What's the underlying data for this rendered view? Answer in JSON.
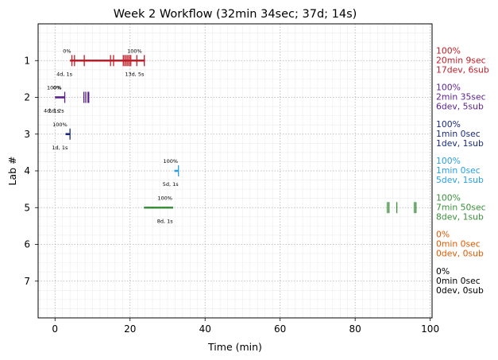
{
  "chart_data": {
    "type": "timeline",
    "title": "Week 2 Workflow (32min 34sec; 37d; 14s)",
    "xlabel": "Time (min)",
    "ylabel": "Lab #",
    "xlim": [
      -4.5,
      100.5
    ],
    "ylim": [
      8.0,
      0.0
    ],
    "xticks": [
      0,
      20,
      40,
      60,
      80,
      100
    ],
    "xtick_labels": [
      "0",
      "20",
      "40",
      "60",
      "80",
      "100"
    ],
    "yticks": [
      1,
      2,
      3,
      4,
      5,
      6,
      7
    ],
    "ytick_labels": [
      "1",
      "2",
      "3",
      "4",
      "5",
      "6",
      "7"
    ],
    "grid": true,
    "labs": [
      {
        "lab": 1,
        "color": "#c01c28",
        "segments": [
          [
            4.0,
            24.0
          ]
        ],
        "marks": [
          4.5,
          5.2,
          7.8,
          14.8,
          15.6,
          18.2,
          18.6,
          19.0,
          19.4,
          19.8,
          20.2,
          21.8,
          23.8
        ],
        "annotations": [
          {
            "text": "0%",
            "x": 3.2,
            "pos": "above"
          },
          {
            "text": "4d, 1s",
            "x": 2.5,
            "pos": "below"
          },
          {
            "text": "100%",
            "x": 21.2,
            "pos": "above"
          },
          {
            "text": "13d, 5s",
            "x": 21.2,
            "pos": "below"
          }
        ],
        "side": [
          "100%",
          "20min 9sec",
          "17dev, 6sub"
        ]
      },
      {
        "lab": 2,
        "color": "#5a1f8e",
        "segments": [
          [
            0.0,
            2.6
          ]
        ],
        "marks": [
          2.6,
          7.7,
          8.2,
          8.8,
          9.0
        ],
        "annotations": [
          {
            "text": "100%",
            "x": -0.2,
            "pos": "above"
          },
          {
            "text": "0%",
            "x": 0.6,
            "pos": "above"
          },
          {
            "text": "4d, 1s",
            "x": -0.9,
            "pos": "below"
          },
          {
            "text": "2d, 2s",
            "x": 0.3,
            "pos": "below"
          }
        ],
        "side": [
          "100%",
          "2min 35sec",
          "6dev, 5sub"
        ]
      },
      {
        "lab": 3,
        "color": "#1a2a7a",
        "segments": [
          [
            2.8,
            4.0
          ]
        ],
        "marks": [
          4.0
        ],
        "annotations": [
          {
            "text": "100%",
            "x": 1.3,
            "pos": "above"
          },
          {
            "text": "1d, 1s",
            "x": 1.3,
            "pos": "below"
          }
        ],
        "side": [
          "100%",
          "1min 0sec",
          "1dev, 1sub"
        ]
      },
      {
        "lab": 4,
        "color": "#2b9fe0",
        "segments": [
          [
            31.8,
            32.9
          ]
        ],
        "marks": [
          32.9
        ],
        "annotations": [
          {
            "text": "100%",
            "x": 30.8,
            "pos": "above"
          },
          {
            "text": "5d, 1s",
            "x": 30.8,
            "pos": "below"
          }
        ],
        "side": [
          "100%",
          "1min 0sec",
          "5dev, 1sub"
        ]
      },
      {
        "lab": 5,
        "color": "#3a8f3a",
        "segments": [
          [
            23.7,
            31.5
          ]
        ],
        "marks": [
          88.6,
          89.0,
          91.1,
          95.8,
          96.2
        ],
        "annotations": [
          {
            "text": "100%",
            "x": 29.3,
            "pos": "above"
          },
          {
            "text": "8d, 1s",
            "x": 29.3,
            "pos": "below"
          }
        ],
        "side": [
          "100%",
          "7min 50sec",
          "8dev, 1sub"
        ]
      },
      {
        "lab": 6,
        "color": "#e05a00",
        "segments": [],
        "marks": [],
        "annotations": [],
        "side": [
          "0%",
          "0min 0sec",
          "0dev, 0sub"
        ]
      },
      {
        "lab": 7,
        "color": "#000000",
        "segments": [],
        "marks": [],
        "annotations": [],
        "side": [
          "0%",
          "0min 0sec",
          "0dev, 0sub"
        ]
      }
    ]
  }
}
